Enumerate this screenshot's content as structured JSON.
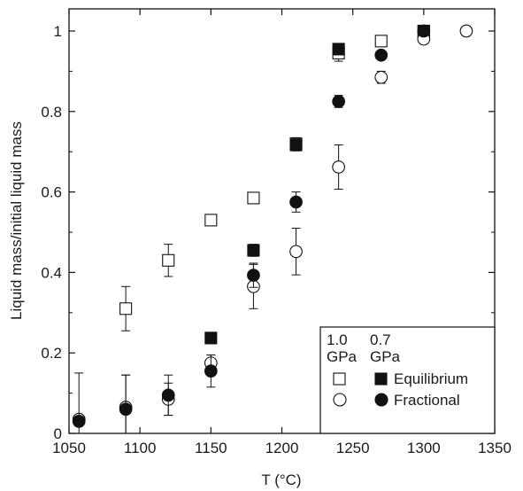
{
  "chart_data": {
    "type": "scatter",
    "xlabel": "T (°C)",
    "ylabel": "Liquid mass/initial liquid mass",
    "xlim": [
      1050,
      1350
    ],
    "ylim": [
      0,
      1.05
    ],
    "xticks": [
      1050,
      1100,
      1150,
      1200,
      1250,
      1300,
      1350
    ],
    "yticks": [
      0,
      0.2,
      0.4,
      0.6,
      0.8,
      1
    ],
    "xtick_labels": [
      "1050",
      "1100",
      "1150",
      "1200",
      "1250",
      "1300",
      "1350"
    ],
    "ytick_labels": [
      "0",
      "0.2",
      "0.4",
      "0.6",
      "0.8",
      "1"
    ],
    "grid": false,
    "legend": {
      "position": "bottom-right",
      "col1_line1": "1.0",
      "col1_line2": "GPa",
      "col2_line1": "0.7",
      "col2_line2": "GPa",
      "row1": "Equilibrium",
      "row2": "Fractional"
    },
    "series": [
      {
        "pressure": "1.0 GPa",
        "mode": "Equilibrium",
        "marker": "square-open",
        "points": [
          {
            "x": 1090,
            "y": 0.31,
            "err": 0.055
          },
          {
            "x": 1120,
            "y": 0.43,
            "err": 0.04
          },
          {
            "x": 1150,
            "y": 0.53
          },
          {
            "x": 1180,
            "y": 0.585
          },
          {
            "x": 1210,
            "y": 0.72,
            "err": 0.015
          },
          {
            "x": 1240,
            "y": 0.945,
            "err": 0.02
          },
          {
            "x": 1270,
            "y": 0.975
          },
          {
            "x": 1300,
            "y": 1.0
          }
        ]
      },
      {
        "pressure": "0.7 GPa",
        "mode": "Equilibrium",
        "marker": "square-filled",
        "points": [
          {
            "x": 1150,
            "y": 0.237
          },
          {
            "x": 1180,
            "y": 0.455,
            "err": 0.015
          },
          {
            "x": 1210,
            "y": 0.717,
            "err": 0.015
          },
          {
            "x": 1240,
            "y": 0.955,
            "err": 0.01
          },
          {
            "x": 1300,
            "y": 1.0
          }
        ]
      },
      {
        "pressure": "1.0 GPa",
        "mode": "Fractional",
        "marker": "circle-open",
        "points": [
          {
            "x": 1057,
            "y": 0.035
          },
          {
            "x": 1090,
            "y": 0.065,
            "err": 0.08
          },
          {
            "x": 1120,
            "y": 0.085,
            "err": 0.04
          },
          {
            "x": 1150,
            "y": 0.175,
            "err": 0.02
          },
          {
            "x": 1180,
            "y": 0.365,
            "err": 0.055
          },
          {
            "x": 1210,
            "y": 0.452,
            "err": 0.058
          },
          {
            "x": 1240,
            "y": 0.662,
            "err": 0.055
          },
          {
            "x": 1270,
            "y": 0.885,
            "err": 0.015
          },
          {
            "x": 1300,
            "y": 0.98
          },
          {
            "x": 1330,
            "y": 1.0
          }
        ]
      },
      {
        "pressure": "0.7 GPa",
        "mode": "Fractional",
        "marker": "circle-filled",
        "points": [
          {
            "x": 1057,
            "y": 0.03,
            "err": 0.12
          },
          {
            "x": 1090,
            "y": 0.06,
            "err": 0.085
          },
          {
            "x": 1120,
            "y": 0.095,
            "err": 0.05
          },
          {
            "x": 1150,
            "y": 0.155,
            "err": 0.04
          },
          {
            "x": 1180,
            "y": 0.393,
            "err": 0.03
          },
          {
            "x": 1210,
            "y": 0.575,
            "err": 0.025
          },
          {
            "x": 1240,
            "y": 0.825,
            "err": 0.015
          },
          {
            "x": 1270,
            "y": 0.94,
            "err": 0.01
          },
          {
            "x": 1300,
            "y": 1.0
          }
        ]
      }
    ]
  }
}
